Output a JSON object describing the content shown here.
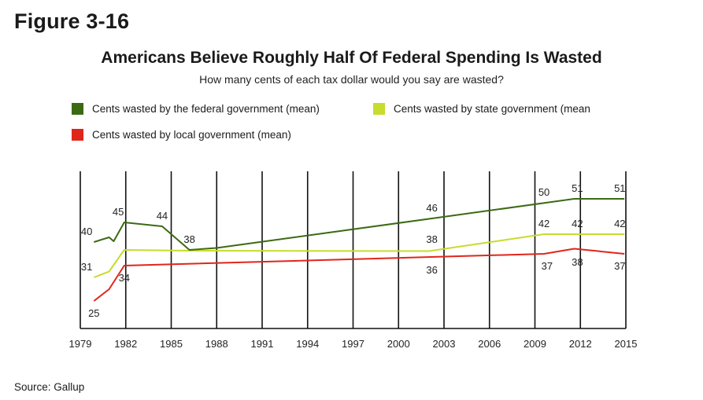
{
  "figure_label": "Figure 3-16",
  "source": "Source: Gallup",
  "chart_data": {
    "type": "line",
    "title": "Americans Believe Roughly Half Of Federal Spending Is Wasted",
    "subtitle": "How many cents of each tax dollar would you say are wasted?",
    "xlabel": "",
    "ylabel": "",
    "x_ticks": [
      1979,
      1982,
      1985,
      1988,
      1991,
      1994,
      1997,
      2000,
      2003,
      2006,
      2009,
      2012,
      2015
    ],
    "x_tick_labels": [
      "1979",
      "1982",
      "1985",
      "1988",
      "1991",
      "1994",
      "1997",
      "2000",
      "2003",
      "2006",
      "2009",
      "2012",
      "2015"
    ],
    "xlim": [
      1979,
      2015
    ],
    "ylim": [
      18,
      58
    ],
    "grid": "vertical",
    "legend_position": "top",
    "series": [
      {
        "name": "Cents wasted by the federal government (mean)",
        "color": "#3c6a14",
        "points": [
          [
            1979.9,
            40
          ],
          [
            1980.9,
            41.2
          ],
          [
            1981.2,
            40.2
          ],
          [
            1981.9,
            45
          ],
          [
            1984.4,
            44
          ],
          [
            1986.2,
            38
          ],
          [
            1988,
            38.5
          ],
          [
            2002.2,
            46
          ],
          [
            2011.6,
            51
          ],
          [
            2012,
            51
          ],
          [
            2014.9,
            51
          ]
        ],
        "labels": [
          {
            "x": 1979.9,
            "y": 40,
            "text": "40",
            "pos": "left"
          },
          {
            "x": 1981.5,
            "y": 45,
            "text": "45",
            "pos": "above"
          },
          {
            "x": 1984.4,
            "y": 44,
            "text": "44",
            "pos": "above"
          },
          {
            "x": 1986.2,
            "y": 38,
            "text": "38",
            "pos": "above"
          },
          {
            "x": 2002.2,
            "y": 46,
            "text": "46",
            "pos": "above"
          },
          {
            "x": 2009.6,
            "y": 50,
            "text": "50",
            "pos": "above"
          },
          {
            "x": 2011.8,
            "y": 51,
            "text": "51",
            "pos": "above"
          },
          {
            "x": 2014.6,
            "y": 51,
            "text": "51",
            "pos": "above"
          }
        ]
      },
      {
        "name": "Cents wasted by state government (mean",
        "color": "#c8dc2c",
        "points": [
          [
            1979.9,
            31
          ],
          [
            1980.9,
            32.5
          ],
          [
            1981.9,
            38
          ],
          [
            1986.2,
            37.8
          ],
          [
            2002,
            37.7
          ],
          [
            2009.6,
            42
          ],
          [
            2014.9,
            42
          ]
        ],
        "labels": [
          {
            "x": 1979.9,
            "y": 31,
            "text": "31",
            "pos": "left"
          },
          {
            "x": 2002.2,
            "y": 38,
            "text": "38",
            "pos": "above"
          },
          {
            "x": 2009.6,
            "y": 42,
            "text": "42",
            "pos": "above"
          },
          {
            "x": 2011.8,
            "y": 42,
            "text": "42",
            "pos": "above"
          },
          {
            "x": 2014.6,
            "y": 42,
            "text": "42",
            "pos": "above"
          }
        ]
      },
      {
        "name": "Cents wasted by local government (mean)",
        "color": "#e0261b",
        "points": [
          [
            1979.9,
            25
          ],
          [
            1980.9,
            28
          ],
          [
            1981.9,
            34
          ],
          [
            2009.6,
            37
          ],
          [
            2011.6,
            38.3
          ],
          [
            2014.9,
            37
          ]
        ],
        "labels": [
          {
            "x": 1979.9,
            "y": 25,
            "text": "25",
            "pos": "below"
          },
          {
            "x": 1981.9,
            "y": 34,
            "text": "34",
            "pos": "below"
          },
          {
            "x": 2002.2,
            "y": 36,
            "text": "36",
            "pos": "below"
          },
          {
            "x": 2009.8,
            "y": 37,
            "text": "37",
            "pos": "below"
          },
          {
            "x": 2011.8,
            "y": 38,
            "text": "38",
            "pos": "below"
          },
          {
            "x": 2014.6,
            "y": 37,
            "text": "37",
            "pos": "below"
          }
        ]
      }
    ]
  }
}
